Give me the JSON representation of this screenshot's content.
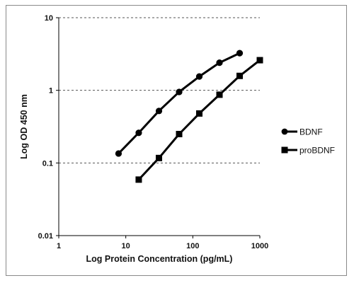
{
  "chart_data": {
    "type": "line",
    "xlabel": "Log Protein Concentration (pg/mL)",
    "ylabel": "Log OD 450 nm",
    "x_scale": "log",
    "y_scale": "log",
    "xlim": [
      1,
      1000
    ],
    "ylim": [
      0.01,
      10
    ],
    "x_ticks": [
      "1",
      "10",
      "100",
      "1000"
    ],
    "y_ticks": [
      "0.01",
      "0.1",
      "1",
      "10"
    ],
    "grid": "horizontal dashed",
    "legend_position": "right",
    "series": [
      {
        "name": "BDNF",
        "marker": "circle",
        "color": "#000000",
        "x": [
          7.8,
          15.6,
          31.25,
          62.5,
          125,
          250,
          500
        ],
        "y": [
          0.135,
          0.26,
          0.52,
          0.95,
          1.55,
          2.4,
          3.25
        ]
      },
      {
        "name": "proBDNF",
        "marker": "square",
        "color": "#000000",
        "x": [
          15.6,
          31.25,
          62.5,
          125,
          250,
          500,
          1000
        ],
        "y": [
          0.059,
          0.117,
          0.25,
          0.48,
          0.87,
          1.58,
          2.6
        ]
      }
    ]
  }
}
